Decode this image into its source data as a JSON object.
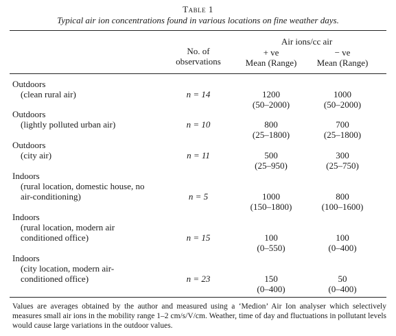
{
  "table": {
    "label": "Table 1",
    "caption": "Typical air ion concentrations found in various locations on fine weather days.",
    "headers": {
      "nobs_line1": "No. of",
      "nobs_line2": "observations",
      "group": "Air ions/cc air",
      "pos_sign": "+ ve",
      "neg_sign": "− ve",
      "pos_stat": "Mean (Range)",
      "neg_stat": "Mean (Range)"
    },
    "rows": [
      {
        "label_main": "Outdoors",
        "label_sub": [
          "(clean rural air)"
        ],
        "n": "n = 14",
        "pos_mean": "1200",
        "pos_range": "(50–2000)",
        "neg_mean": "1000",
        "neg_range": "(50–2000)"
      },
      {
        "label_main": "Outdoors",
        "label_sub": [
          "(lightly polluted urban air)"
        ],
        "n": "n = 10",
        "pos_mean": "800",
        "pos_range": "(25–1800)",
        "neg_mean": "700",
        "neg_range": "(25–1800)"
      },
      {
        "label_main": "Outdoors",
        "label_sub": [
          "(city air)"
        ],
        "n": "n = 11",
        "pos_mean": "500",
        "pos_range": "(25–950)",
        "neg_mean": "300",
        "neg_range": "(25–750)"
      },
      {
        "label_main": "Indoors",
        "label_sub": [
          "(rural location, domestic house, no",
          "air-conditioning)"
        ],
        "n": "n = 5",
        "pos_mean": "1000",
        "pos_range": "(150–1800)",
        "neg_mean": "800",
        "neg_range": "(100–1600)"
      },
      {
        "label_main": "Indoors",
        "label_sub": [
          "(rural location, modern air",
          "conditioned office)"
        ],
        "n": "n = 15",
        "pos_mean": "100",
        "pos_range": "(0–550)",
        "neg_mean": "100",
        "neg_range": "(0–400)"
      },
      {
        "label_main": "Indoors",
        "label_sub": [
          "(city location, modern air-",
          "conditioned office)"
        ],
        "n": "n = 23",
        "pos_mean": "150",
        "pos_range": "(0–400)",
        "neg_mean": "50",
        "neg_range": "(0–400)"
      }
    ],
    "footnote": "Values are averages obtained by the author and measured using a ‘Medion’ Air Ion analyser which selectively measures small air ions in the mobility range 1–2 cm/s/V/cm. Weather, time of day and fluctuations in pollutant levels would cause large variations in the outdoor values."
  }
}
